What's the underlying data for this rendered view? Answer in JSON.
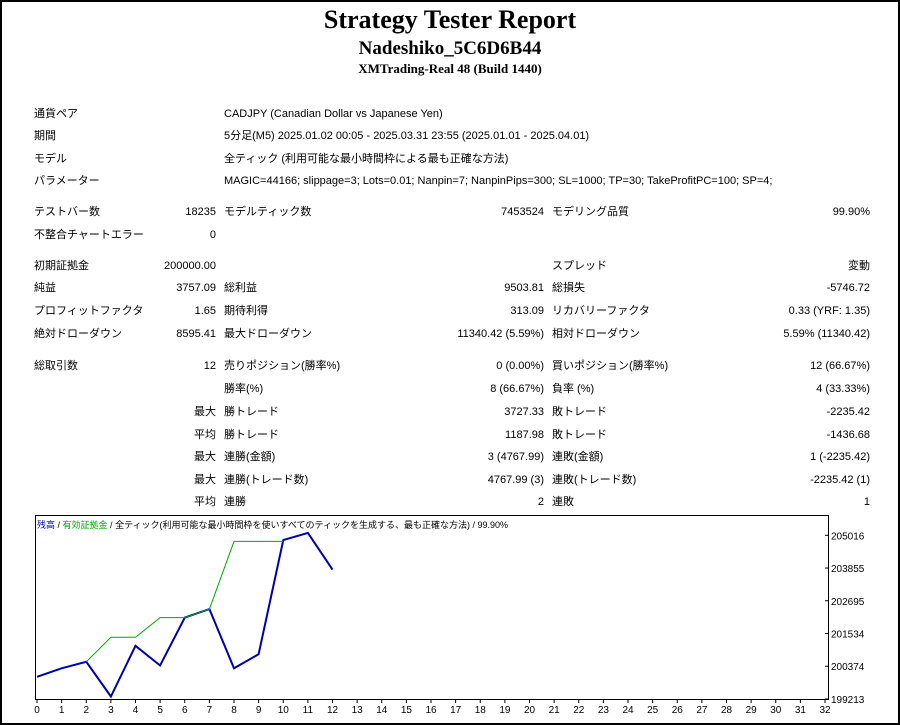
{
  "header": {
    "title": "Strategy Tester Report",
    "expert": "Nadeshiko_5C6D6B44",
    "server": "XMTrading-Real 48 (Build 1440)"
  },
  "settings": {
    "symbol_label": "通貨ペア",
    "symbol_value": "CADJPY (Canadian Dollar vs Japanese Yen)",
    "period_label": "期間",
    "period_value": "5分足(M5) 2025.01.02 00:05 - 2025.03.31 23:55 (2025.01.01 - 2025.04.01)",
    "model_label": "モデル",
    "model_value": "全ティック (利用可能な最小時間枠による最も正確な方法)",
    "params_label": "パラメーター",
    "params_value": "MAGIC=44166; slippage=3; Lots=0.01; Nanpin=7; NanpinPips=300; SL=1000; TP=30; TakeProfitPC=100; SP=4;"
  },
  "bars": {
    "bars_label": "テストバー数",
    "bars_value": "18235",
    "ticks_label": "モデルティック数",
    "ticks_value": "7453524",
    "quality_label": "モデリング品質",
    "quality_value": "99.90%",
    "errors_label": "不整合チャートエラー",
    "errors_value": "0"
  },
  "money": {
    "deposit_label": "初期証拠金",
    "deposit_value": "200000.00",
    "spread_label": "スプレッド",
    "spread_value": "変動",
    "net_label": "純益",
    "net_value": "3757.09",
    "gross_profit_label": "総利益",
    "gross_profit_value": "9503.81",
    "gross_loss_label": "総損失",
    "gross_loss_value": "-5746.72",
    "pf_label": "プロフィットファクタ",
    "pf_value": "1.65",
    "expected_label": "期待利得",
    "expected_value": "313.09",
    "recovery_label": "リカバリーファクタ",
    "recovery_value": "0.33 (YRF: 1.35)",
    "abs_dd_label": "絶対ドローダウン",
    "abs_dd_value": "8595.41",
    "max_dd_label": "最大ドローダウン",
    "max_dd_value": "11340.42 (5.59%)",
    "rel_dd_label": "相対ドローダウン",
    "rel_dd_value": "5.59% (11340.42)"
  },
  "trades": {
    "total_label": "総取引数",
    "total_value": "12",
    "short_label": "売りポジション(勝率%)",
    "short_value": "0 (0.00%)",
    "long_label": "買いポジション(勝率%)",
    "long_value": "12 (66.67%)",
    "win_rate_label": "勝率(%)",
    "win_rate_value": "8 (66.67%)",
    "loss_rate_label": "負率 (%)",
    "loss_rate_value": "4 (33.33%)",
    "max_label": "最大",
    "avg_label": "平均",
    "largest_win_label": "勝トレード",
    "largest_win_value": "3727.33",
    "largest_loss_label": "敗トレード",
    "largest_loss_value": "-2235.42",
    "avg_win_label": "勝トレード",
    "avg_win_value": "1187.98",
    "avg_loss_label": "敗トレード",
    "avg_loss_value": "-1436.68",
    "max_consec_wins_label": "連勝(金額)",
    "max_consec_wins_value": "3 (4767.99)",
    "max_consec_losses_label": "連敗(金額)",
    "max_consec_losses_value": "1 (-2235.42)",
    "max_consec_profit_label": "連勝(トレード数)",
    "max_consec_profit_value": "4767.99 (3)",
    "max_consec_loss_label": "連敗(トレード数)",
    "max_consec_loss_value": "-2235.42 (1)",
    "avg_consec_wins_label": "連勝",
    "avg_consec_wins_value": "2",
    "avg_consec_losses_label": "連敗",
    "avg_consec_losses_value": "1"
  },
  "legend": {
    "balance": "残高",
    "sep1": " / ",
    "equity": "有効証拠金",
    "sep2": " / ",
    "model": "全ティック(利用可能な最小時間枠を使いすべてのティックを生成する、最も正確な方法)",
    "sep3": " / ",
    "quality": "99.90%"
  },
  "chart_data": {
    "type": "line",
    "x_ticks": [
      0,
      1,
      2,
      3,
      4,
      5,
      6,
      7,
      8,
      9,
      10,
      11,
      12,
      13,
      14,
      15,
      16,
      17,
      18,
      19,
      20,
      21,
      22,
      23,
      24,
      25,
      26,
      27,
      28,
      29,
      30,
      31,
      32
    ],
    "y_ticks": [
      199213,
      200374,
      201534,
      202695,
      203855,
      205016
    ],
    "xlim": [
      0,
      32
    ],
    "ylim": [
      199213,
      205700
    ],
    "series": [
      {
        "name": "残高",
        "color": "#0000aa",
        "x": [
          0,
          1,
          2,
          3,
          4,
          5,
          6,
          7,
          8,
          9,
          10,
          11,
          12
        ],
        "y": [
          200000,
          200300,
          200530,
          199300,
          201100,
          200400,
          202100,
          202400,
          200300,
          200800,
          204850,
          205100,
          203800
        ]
      },
      {
        "name": "有効証拠金",
        "color": "#00aa00",
        "x": [
          2,
          3,
          4,
          5,
          6,
          7,
          8,
          9,
          10
        ],
        "y": [
          200530,
          201400,
          201400,
          202100,
          202100,
          202400,
          204800,
          204800,
          204800
        ]
      }
    ]
  }
}
